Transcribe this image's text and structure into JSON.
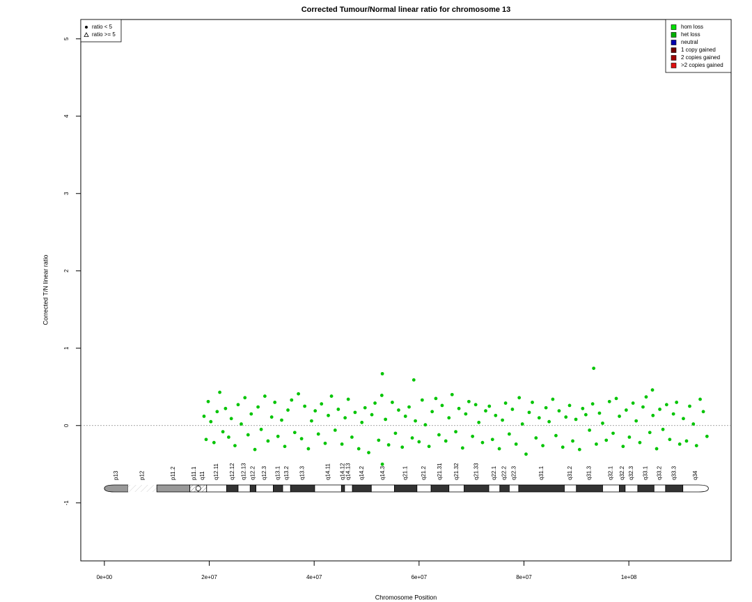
{
  "chart_data": {
    "type": "scatter",
    "title": "Corrected Tumour/Normal linear ratio for chromosome  13",
    "x_label": "Chromosome Position",
    "y_label": "Corrected T/N linear ratio",
    "xlim": [
      -4500000.0,
      119500000.0
    ],
    "ylim": [
      -1.75,
      5.25
    ],
    "xticks": [
      {
        "value": 0,
        "label": "0e+00"
      },
      {
        "value": 20000000.0,
        "label": "2e+07"
      },
      {
        "value": 40000000.0,
        "label": "4e+07"
      },
      {
        "value": 60000000.0,
        "label": "6e+07"
      },
      {
        "value": 80000000.0,
        "label": "8e+07"
      },
      {
        "value": 100000000.0,
        "label": "1e+08"
      }
    ],
    "yticks": [
      -1,
      0,
      1,
      2,
      3,
      4,
      5
    ],
    "reference_line": 0,
    "marker_legend": [
      {
        "label": "ratio < 5",
        "marker": "circle"
      },
      {
        "label": "ratio >= 5",
        "marker": "triangle"
      }
    ],
    "state_legend": [
      {
        "label": "hom loss",
        "color": "#00e000"
      },
      {
        "label": "het loss",
        "color": "#00b000"
      },
      {
        "label": "neutral",
        "color": "#0000b0"
      },
      {
        "label": "1 copy gained",
        "color": "#700000"
      },
      {
        "label": "2 copies gained",
        "color": "#a00000"
      },
      {
        "label": ">2 copies gained",
        "color": "#e01010"
      }
    ],
    "series": [
      {
        "color": "#00c400",
        "x": [
          19000000.0,
          19400000.0,
          19800000.0,
          20300000.0,
          20900000.0,
          21500000.0,
          22000000.0,
          22600000.0,
          23100000.0,
          23700000.0,
          24200000.0,
          24900000.0,
          25500000.0,
          26100000.0,
          26800000.0,
          27400000.0,
          28000000.0,
          28700000.0,
          29300000.0,
          29900000.0,
          30600000.0,
          31200000.0,
          31900000.0,
          32500000.0,
          33100000.0,
          33800000.0,
          34400000.0,
          35000000.0,
          35700000.0,
          36300000.0,
          37000000.0,
          37600000.0,
          38200000.0,
          38900000.0,
          39500000.0,
          40200000.0,
          40800000.0,
          41400000.0,
          42100000.0,
          42700000.0,
          43300000.0,
          44000000.0,
          44600000.0,
          45300000.0,
          45900000.0,
          46500000.0,
          47200000.0,
          47800000.0,
          48500000.0,
          49100000.0,
          49700000.0,
          50400000.0,
          51000000.0,
          51600000.0,
          52300000.0,
          52900000.0,
          53000000.0,
          53000000.0,
          53600000.0,
          54200000.0,
          54900000.0,
          55500000.0,
          56100000.0,
          56800000.0,
          57400000.0,
          58100000.0,
          58700000.0,
          59000000.0,
          59300000.0,
          60000000.0,
          60600000.0,
          61200000.0,
          61900000.0,
          62500000.0,
          63200000.0,
          63800000.0,
          64400000.0,
          65100000.0,
          65700000.0,
          66300000.0,
          67000000.0,
          67600000.0,
          68300000.0,
          68900000.0,
          69500000.0,
          70200000.0,
          70800000.0,
          71400000.0,
          72100000.0,
          72700000.0,
          73400000.0,
          74000000.0,
          74600000.0,
          75300000.0,
          75900000.0,
          76500000.0,
          77200000.0,
          77800000.0,
          78500000.0,
          79100000.0,
          79700000.0,
          80400000.0,
          81000000.0,
          81600000.0,
          82300000.0,
          82900000.0,
          83600000.0,
          84200000.0,
          84800000.0,
          85500000.0,
          86100000.0,
          86700000.0,
          87400000.0,
          88000000.0,
          88700000.0,
          89300000.0,
          89900000.0,
          90600000.0,
          91200000.0,
          91800000.0,
          92500000.0,
          93100000.0,
          93300000.0,
          93800000.0,
          94400000.0,
          95000000.0,
          95700000.0,
          96300000.0,
          97000000.0,
          97600000.0,
          98200000.0,
          98900000.0,
          99500000.0,
          100100000.0,
          100800000.0,
          101400000.0,
          102100000.0,
          102700000.0,
          103300000.0,
          104000000.0,
          104500000.0,
          104600000.0,
          105300000.0,
          105900000.0,
          106500000.0,
          107200000.0,
          107800000.0,
          108500000.0,
          109100000.0,
          109700000.0,
          110400000.0,
          111000000.0,
          111600000.0,
          112300000.0,
          112900000.0,
          113600000.0,
          114200000.0,
          114900000.0
        ],
        "values": [
          0.12,
          -0.18,
          0.31,
          0.05,
          -0.22,
          0.18,
          0.43,
          -0.08,
          0.22,
          -0.15,
          0.09,
          -0.26,
          0.27,
          0.02,
          0.36,
          -0.12,
          0.15,
          -0.31,
          0.24,
          -0.05,
          0.38,
          -0.2,
          0.11,
          0.3,
          -0.14,
          0.07,
          -0.27,
          0.2,
          0.33,
          -0.09,
          0.41,
          -0.17,
          0.25,
          -0.3,
          0.06,
          0.19,
          -0.11,
          0.28,
          -0.23,
          0.13,
          0.38,
          -0.06,
          0.21,
          -0.24,
          0.1,
          0.34,
          -0.15,
          0.17,
          -0.3,
          0.04,
          0.23,
          -0.35,
          0.14,
          0.29,
          -0.19,
          0.39,
          0.67,
          -0.5,
          0.08,
          -0.25,
          0.3,
          -0.1,
          0.2,
          -0.28,
          0.12,
          0.24,
          -0.16,
          0.59,
          0.06,
          -0.21,
          0.33,
          0.01,
          -0.27,
          0.18,
          0.35,
          -0.12,
          0.26,
          -0.2,
          0.1,
          0.4,
          -0.08,
          0.22,
          -0.29,
          0.15,
          0.31,
          -0.14,
          0.27,
          0.04,
          -0.22,
          0.19,
          0.25,
          -0.18,
          0.13,
          -0.3,
          0.07,
          0.29,
          -0.11,
          0.21,
          -0.24,
          0.36,
          0.02,
          -0.37,
          0.17,
          0.3,
          -0.16,
          0.1,
          -0.26,
          0.23,
          0.05,
          0.34,
          -0.13,
          0.19,
          -0.28,
          0.11,
          0.26,
          -0.2,
          0.08,
          -0.31,
          0.22,
          0.14,
          -0.06,
          0.28,
          0.74,
          -0.24,
          0.16,
          0.03,
          -0.19,
          0.31,
          -0.1,
          0.35,
          0.12,
          -0.27,
          0.2,
          -0.15,
          0.29,
          0.06,
          -0.22,
          0.24,
          0.37,
          -0.09,
          0.46,
          0.13,
          -0.3,
          0.21,
          -0.05,
          0.27,
          -0.18,
          0.15,
          0.3,
          -0.24,
          0.09,
          -0.2,
          0.25,
          0.02,
          -0.26,
          0.34,
          0.18,
          -0.14
        ]
      }
    ],
    "ideogram": [
      {
        "name": "p13",
        "start": 0,
        "end": 4500000.0,
        "stain": "gvar"
      },
      {
        "name": "p12",
        "start": 4500000.0,
        "end": 10000000.0,
        "stain": "stalk"
      },
      {
        "name": "p11.2",
        "start": 10000000.0,
        "end": 16300000.0,
        "stain": "gvar"
      },
      {
        "name": "p11.1",
        "start": 16300000.0,
        "end": 17900000.0,
        "stain": "acen"
      },
      {
        "name": "q11",
        "start": 17900000.0,
        "end": 19500000.0,
        "stain": "acen"
      },
      {
        "name": "q12.11",
        "start": 19500000.0,
        "end": 23300000.0,
        "stain": "gneg"
      },
      {
        "name": "q12.12",
        "start": 23300000.0,
        "end": 25500000.0,
        "stain": "gpos"
      },
      {
        "name": "q12.13",
        "start": 25500000.0,
        "end": 27800000.0,
        "stain": "gneg"
      },
      {
        "name": "q12.2",
        "start": 27800000.0,
        "end": 28900000.0,
        "stain": "gpos"
      },
      {
        "name": "q12.3",
        "start": 28900000.0,
        "end": 32200000.0,
        "stain": "gneg"
      },
      {
        "name": "q13.1",
        "start": 32200000.0,
        "end": 34000000.0,
        "stain": "gpos"
      },
      {
        "name": "q13.2",
        "start": 34000000.0,
        "end": 35500000.0,
        "stain": "gneg"
      },
      {
        "name": "q13.3",
        "start": 35500000.0,
        "end": 40100000.0,
        "stain": "gpos"
      },
      {
        "name": "q14.11",
        "start": 40100000.0,
        "end": 45200000.0,
        "stain": "gneg"
      },
      {
        "name": "q14.12",
        "start": 45200000.0,
        "end": 45800000.0,
        "stain": "gpos"
      },
      {
        "name": "q14.13",
        "start": 45800000.0,
        "end": 47300000.0,
        "stain": "gneg"
      },
      {
        "name": "q14.2",
        "start": 47300000.0,
        "end": 50900000.0,
        "stain": "gpos"
      },
      {
        "name": "q14.3",
        "start": 50900000.0,
        "end": 55300000.0,
        "stain": "gneg"
      },
      {
        "name": "q21.1",
        "start": 55300000.0,
        "end": 59600000.0,
        "stain": "gpos"
      },
      {
        "name": "q21.2",
        "start": 59600000.0,
        "end": 62300000.0,
        "stain": "gneg"
      },
      {
        "name": "q21.31",
        "start": 62300000.0,
        "end": 65700000.0,
        "stain": "gpos"
      },
      {
        "name": "q21.32",
        "start": 65700000.0,
        "end": 68600000.0,
        "stain": "gneg"
      },
      {
        "name": "q21.33",
        "start": 68600000.0,
        "end": 73300000.0,
        "stain": "gpos"
      },
      {
        "name": "q22.1",
        "start": 73300000.0,
        "end": 75400000.0,
        "stain": "gneg"
      },
      {
        "name": "q22.2",
        "start": 75400000.0,
        "end": 77200000.0,
        "stain": "gpos"
      },
      {
        "name": "q22.3",
        "start": 77200000.0,
        "end": 79000000.0,
        "stain": "gneg"
      },
      {
        "name": "q31.1",
        "start": 79000000.0,
        "end": 87700000.0,
        "stain": "gpos"
      },
      {
        "name": "q31.2",
        "start": 87700000.0,
        "end": 90000000.0,
        "stain": "gneg"
      },
      {
        "name": "q31.3",
        "start": 90000000.0,
        "end": 95000000.0,
        "stain": "gpos"
      },
      {
        "name": "q32.1",
        "start": 95000000.0,
        "end": 98200000.0,
        "stain": "gneg"
      },
      {
        "name": "q32.2",
        "start": 98200000.0,
        "end": 99300000.0,
        "stain": "gpos"
      },
      {
        "name": "q32.3",
        "start": 99300000.0,
        "end": 101700000.0,
        "stain": "gneg"
      },
      {
        "name": "q33.1",
        "start": 101700000.0,
        "end": 104800000.0,
        "stain": "gpos"
      },
      {
        "name": "q33.2",
        "start": 104800000.0,
        "end": 107000000.0,
        "stain": "gneg"
      },
      {
        "name": "q33.3",
        "start": 107000000.0,
        "end": 110300000.0,
        "stain": "gpos"
      },
      {
        "name": "q34",
        "start": 110300000.0,
        "end": 115169000.0,
        "stain": "gneg"
      }
    ]
  }
}
